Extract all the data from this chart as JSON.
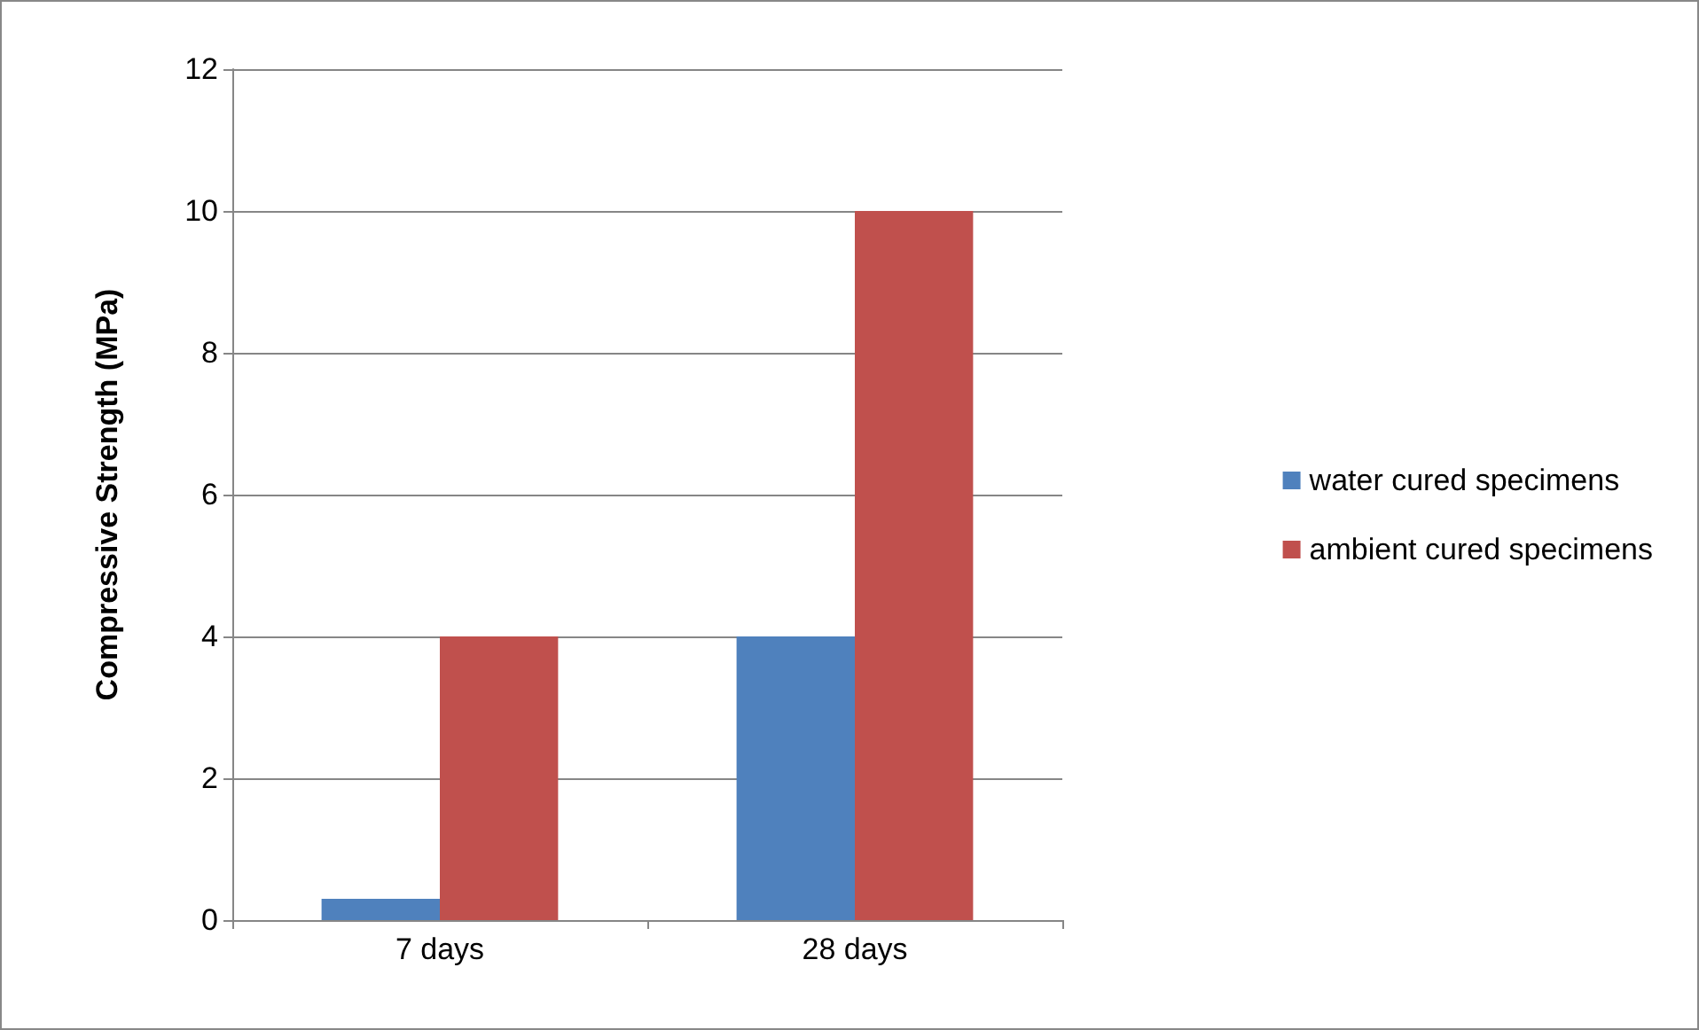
{
  "chart_data": {
    "type": "bar",
    "ylabel": "Compressive Strength (MPa)",
    "categories": [
      "7 days",
      "28 days"
    ],
    "series": [
      {
        "name": "water cured specimens",
        "color": "#4f81bd",
        "values": [
          0.3,
          4
        ]
      },
      {
        "name": "ambient cured specimens",
        "color": "#c0504d",
        "values": [
          4,
          10
        ]
      }
    ],
    "ylim": [
      0,
      12
    ],
    "yticks": [
      0,
      2,
      4,
      6,
      8,
      10,
      12
    ],
    "grid": "y",
    "legend": "right"
  }
}
